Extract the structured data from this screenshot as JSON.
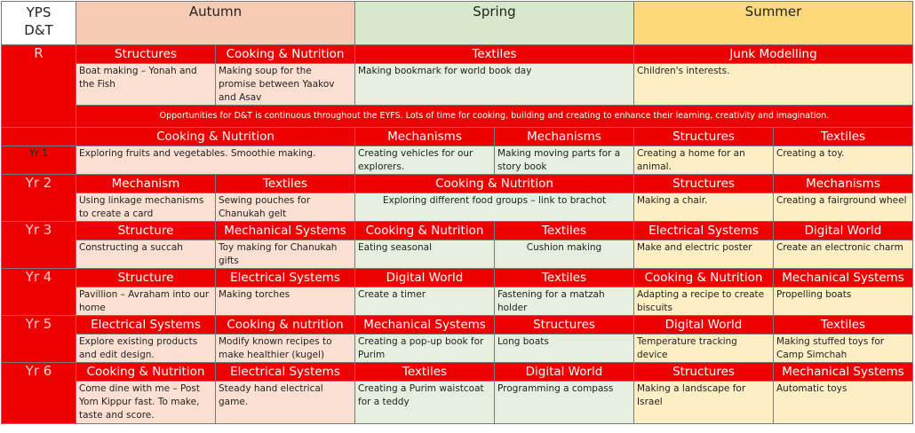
{
  "header": {
    "corner_line1": "YPS",
    "corner_line2": "D&T",
    "autumn": "Autumn",
    "spring": "Spring",
    "summer": "Summer"
  },
  "rows": {
    "r": {
      "year": "R",
      "subjects": [
        "Structures",
        "Cooking & Nutrition",
        "Textiles",
        "Junk Modelling"
      ],
      "descriptions": [
        "Boat making – Yonah and the Fish",
        "Making soup for the promise between Yaakov and Asav",
        "Making bookmark for world book day",
        "Children's interests."
      ],
      "note": "Opportunities for D&T is continuous throughout the EYFS. Lots of time for cooking, building and creating to enhance their learning, creativity and imagination."
    },
    "yr1": {
      "year": "Yr 1",
      "subjects": [
        "Cooking & Nutrition",
        "Mechanisms",
        "Mechanisms",
        "Structures",
        "Textiles"
      ],
      "descriptions": [
        "Exploring fruits and vegetables. Smoothie making.",
        "Creating vehicles for our explorers.",
        "Making moving parts for a story book",
        "Creating a home for an animal.",
        "Creating a toy."
      ]
    },
    "yr2": {
      "year": "Yr 2",
      "subjects": [
        "Mechanism",
        "Textiles",
        "Cooking & Nutrition",
        "Structures",
        "Mechanisms"
      ],
      "descriptions": [
        "Using linkage mechanisms to create a card",
        "Sewing pouches for Chanukah gelt",
        "Exploring different food groups – link to brachot",
        "Making a chair.",
        "Creating a fairground wheel"
      ]
    },
    "yr3": {
      "year": "Yr 3",
      "subjects": [
        "Structure",
        "Mechanical Systems",
        "Cooking & Nutrition",
        "Textiles",
        "Electrical Systems",
        "Digital World"
      ],
      "descriptions": [
        "Constructing a succah",
        "Toy making for Chanukah gifts",
        "Eating seasonal",
        "Cushion making",
        "Make and electric poster",
        "Create an electronic charm"
      ]
    },
    "yr4": {
      "year": "Yr 4",
      "subjects": [
        "Structure",
        "Electrical Systems",
        "Digital World",
        "Textiles",
        "Cooking & Nutrition",
        "Mechanical Systems"
      ],
      "descriptions": [
        "Pavillion – Avraham into our home",
        "Making torches",
        "Create a timer",
        "Fastening for a matzah holder",
        "Adapting a recipe to create biscuits",
        "Propelling boats"
      ]
    },
    "yr5": {
      "year": "Yr 5",
      "subjects": [
        "Electrical Systems",
        "Cooking & nutrition",
        "Mechanical Systems",
        "Structures",
        "Digital World",
        "Textiles"
      ],
      "descriptions": [
        "Explore existing products and edit design.",
        "Modify known recipes to make healthier (kugel)",
        "Creating a pop-up book for Purim",
        "Long boats",
        "Temperature tracking device",
        "Making stuffed toys for Camp Simchah"
      ]
    },
    "yr6": {
      "year": "Yr 6",
      "subjects": [
        "Cooking & Nutrition",
        "Electrical Systems",
        "Textiles",
        "Digital World",
        "Structures",
        "Mechanical Systems"
      ],
      "descriptions": [
        "Come dine with me – Post Yom Kippur fast. To make, taste and score.",
        "Steady hand electrical game.",
        "Creating a Purim waistcoat for a teddy",
        "Programming a compass",
        "Making a landscape for Israel",
        "Automatic toys"
      ]
    }
  }
}
